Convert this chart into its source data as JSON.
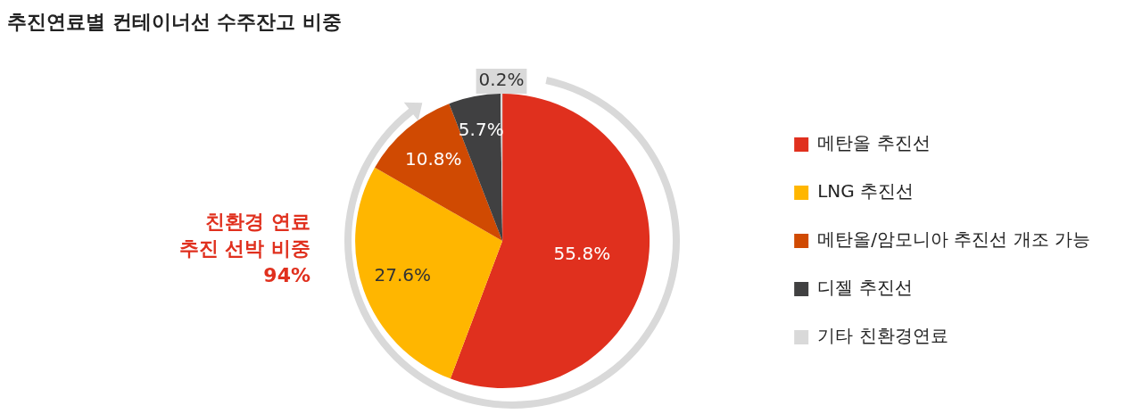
{
  "chart_data": {
    "type": "pie",
    "title": "추진연료별 컨테이너선 수주잔고 비중",
    "categories": [
      "메탄올 추진선",
      "LNG 추진선",
      "메탄올/암모니아 추진선 개조 가능",
      "디젤 추진선",
      "기타 친환경연료"
    ],
    "values": [
      55.8,
      27.6,
      10.8,
      5.7,
      0.2
    ],
    "colors": [
      "#e0301e",
      "#ffb600",
      "#d04a02",
      "#404041",
      "#d9d9d9"
    ],
    "value_labels": [
      "55.8%",
      "27.6%",
      "10.8%",
      "5.7%",
      "0.2%"
    ],
    "legend": "right",
    "annotations": [
      "친환경 연료\n추진 선박 비중\n94%"
    ]
  }
}
